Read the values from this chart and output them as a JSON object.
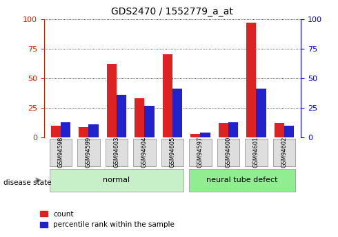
{
  "title": "GDS2470 / 1552779_a_at",
  "samples": [
    "GSM94598",
    "GSM94599",
    "GSM94603",
    "GSM94604",
    "GSM94605",
    "GSM94597",
    "GSM94600",
    "GSM94601",
    "GSM94602"
  ],
  "count_values": [
    10,
    9,
    62,
    33,
    70,
    3,
    12,
    97,
    12
  ],
  "percentile_values": [
    13,
    11,
    36,
    27,
    41,
    4,
    13,
    41,
    10
  ],
  "groups": [
    {
      "label": "normal",
      "indices": [
        0,
        1,
        2,
        3,
        4
      ],
      "color": "#c8f0c8"
    },
    {
      "label": "neural tube defect",
      "indices": [
        5,
        6,
        7,
        8
      ],
      "color": "#90ee90"
    }
  ],
  "ylim": [
    0,
    100
  ],
  "yticks": [
    0,
    25,
    50,
    75,
    100
  ],
  "bar_color_red": "#dd2222",
  "bar_color_blue": "#2222cc",
  "grid_color": "#000000",
  "left_axis_color": "#cc2200",
  "right_axis_color": "#0000cc",
  "bg_color": "#f0f0f0",
  "plot_bg": "#ffffff",
  "legend_red_label": "count",
  "legend_blue_label": "percentile rank within the sample",
  "disease_state_label": "disease state",
  "bar_width": 0.35
}
